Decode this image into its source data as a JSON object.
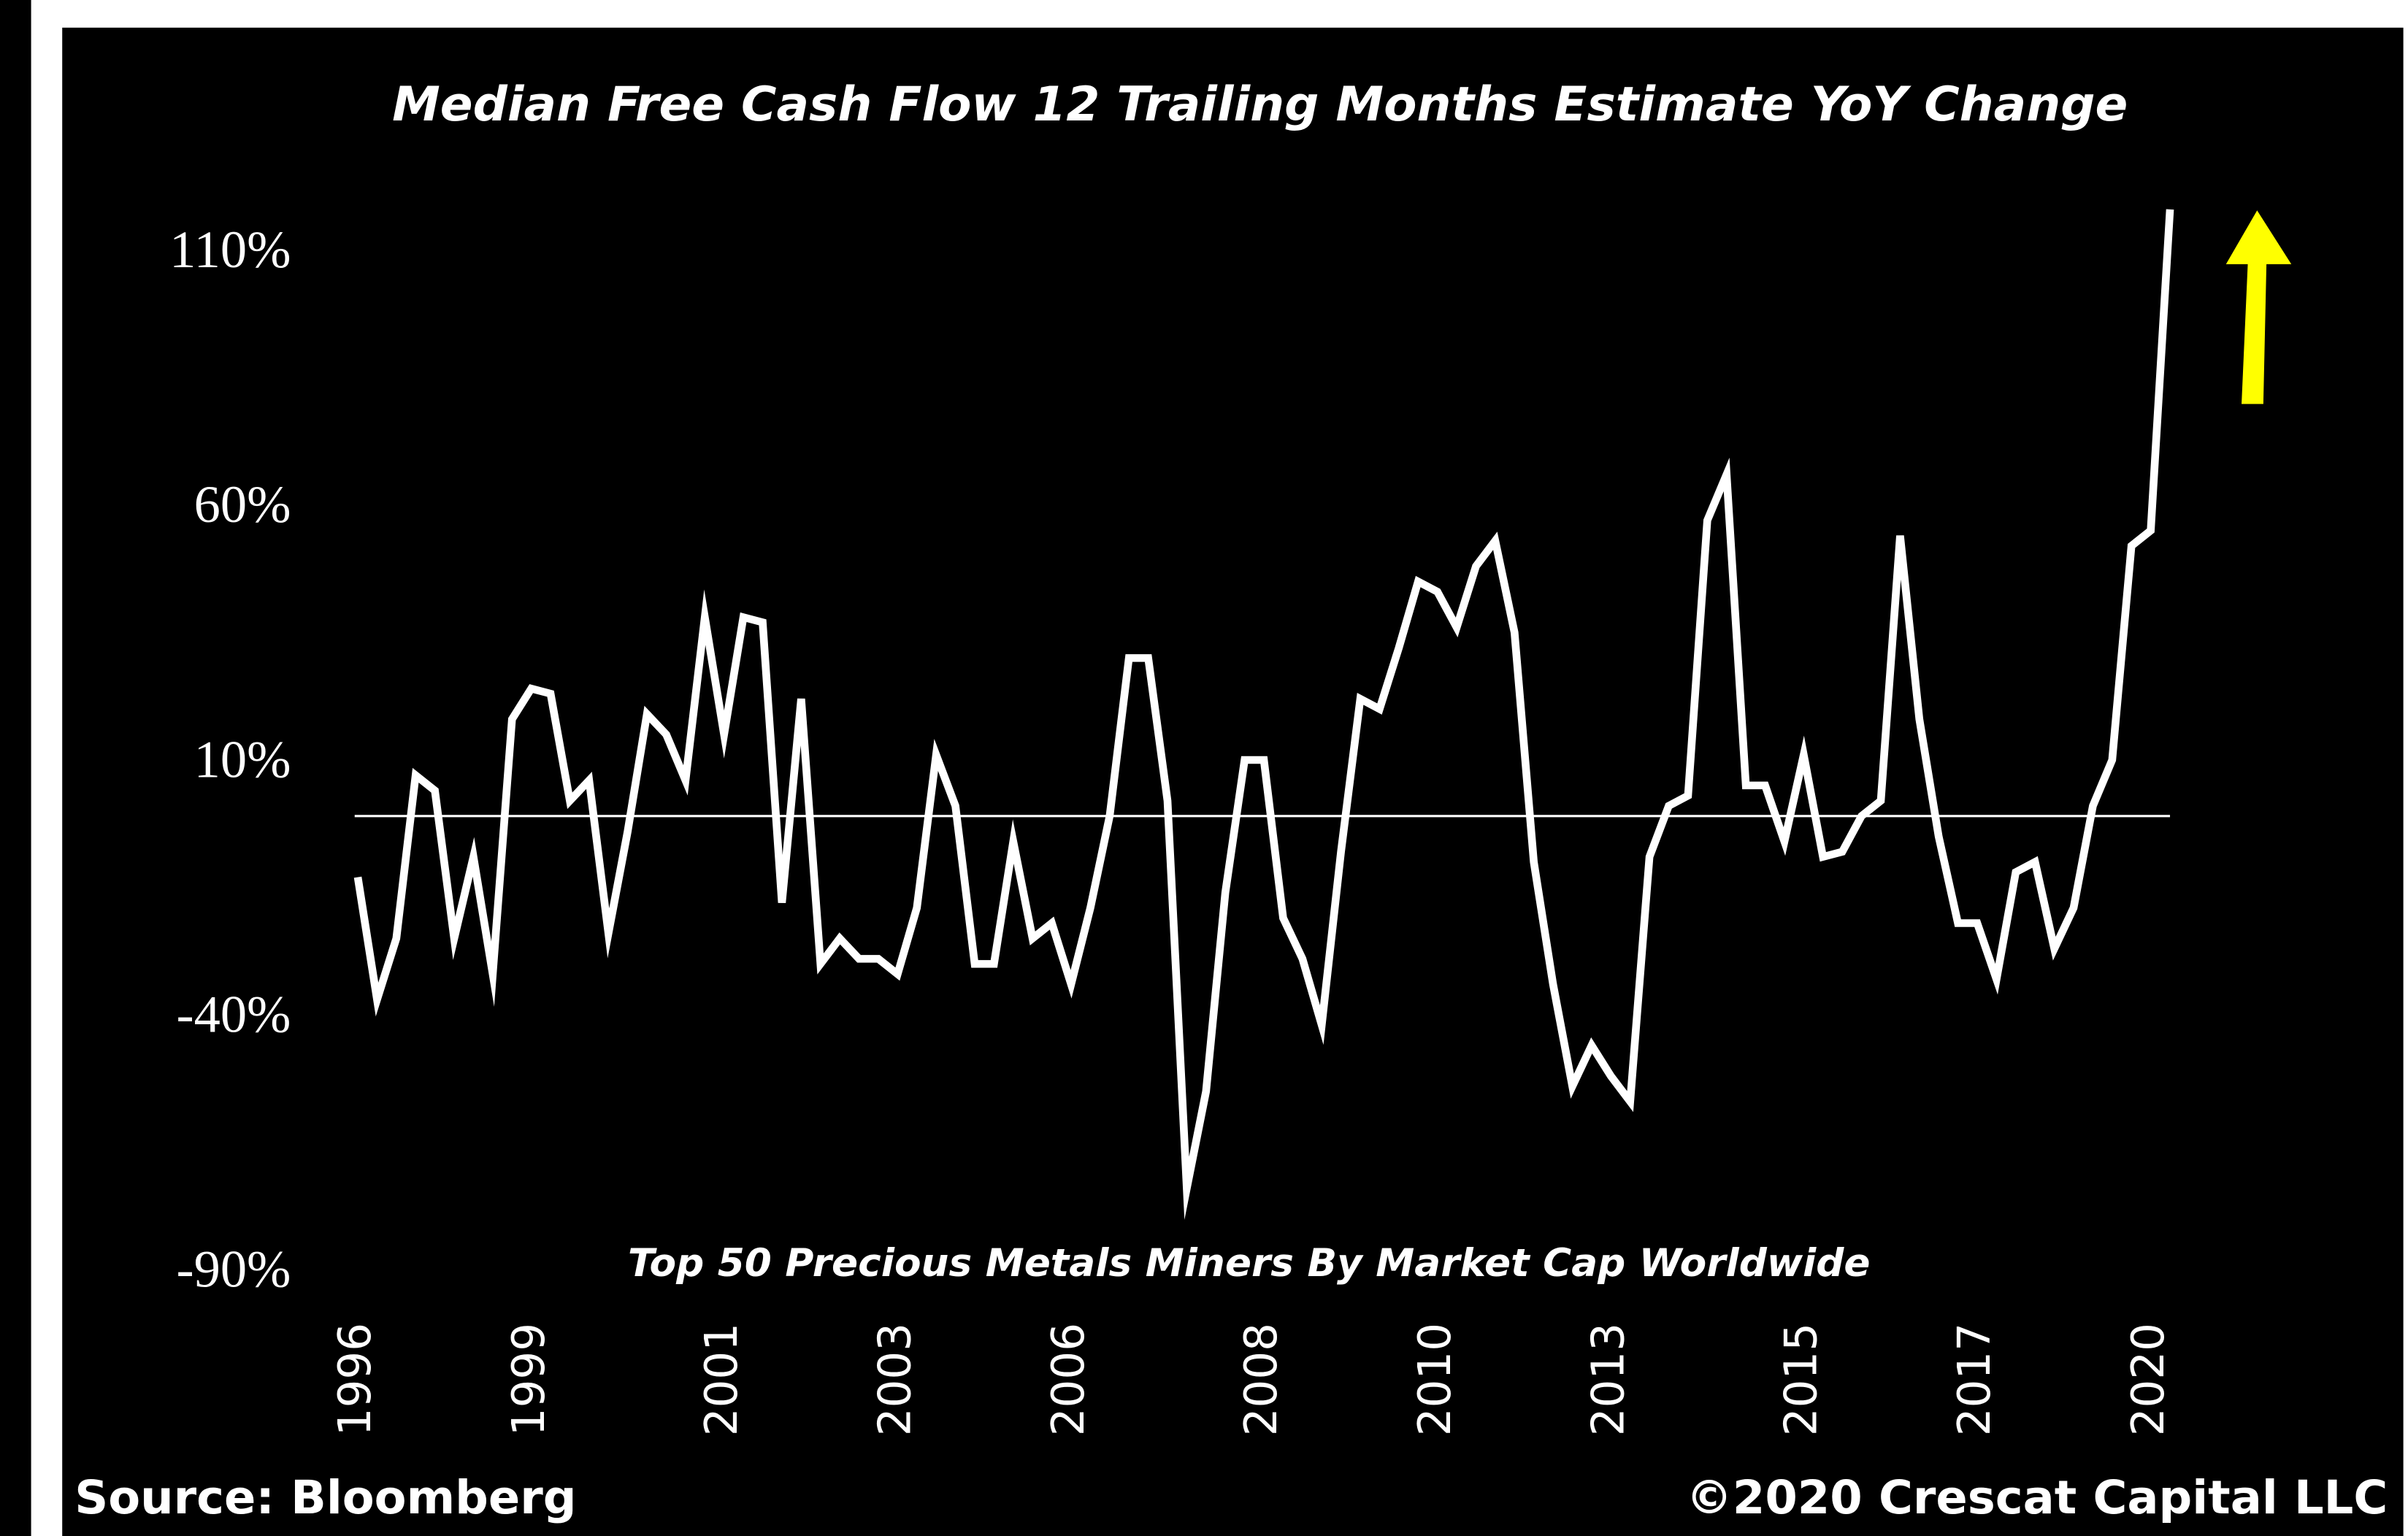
{
  "chart_data": {
    "type": "line",
    "title": "Median Free Cash Flow 12 Trailing Months Estimate YoY Change",
    "subtitle": "Top 50 Precious Metals Miners By Market Cap Worldwide",
    "source": "Source: Bloomberg",
    "copyright": "©2020 Crescat Capital LLC",
    "categories": [
      "1996",
      null,
      null,
      null,
      null,
      null,
      null,
      null,
      null,
      "1999",
      null,
      null,
      null,
      null,
      null,
      null,
      null,
      null,
      null,
      "2001",
      null,
      null,
      null,
      null,
      null,
      null,
      null,
      null,
      "2003",
      null,
      null,
      null,
      null,
      null,
      null,
      null,
      null,
      "2006",
      null,
      null,
      null,
      null,
      null,
      null,
      null,
      null,
      null,
      "2008",
      null,
      null,
      null,
      null,
      null,
      null,
      null,
      null,
      "2010",
      null,
      null,
      null,
      null,
      null,
      null,
      null,
      null,
      "2013",
      null,
      null,
      null,
      null,
      null,
      null,
      null,
      null,
      null,
      "2015",
      null,
      null,
      null,
      null,
      null,
      null,
      null,
      null,
      "2017",
      null,
      null,
      null,
      null,
      null,
      null,
      null,
      null,
      "2020",
      null
    ],
    "series": [
      {
        "color": "#ffffff",
        "values": [
          -12,
          -36,
          -24,
          8,
          5,
          -24,
          -8,
          -31,
          19,
          25,
          24,
          3,
          7,
          -23,
          -3,
          20,
          16,
          7,
          39,
          16,
          39,
          38,
          -17,
          23,
          -29,
          -24,
          -28,
          -28,
          -31,
          -18,
          12,
          2,
          -29,
          -29,
          -5,
          -24,
          -21,
          -33,
          -18,
          0,
          31,
          31,
          3,
          -73,
          -54,
          -15,
          11,
          11,
          -20,
          -28,
          -41,
          -7,
          23,
          21,
          33,
          46,
          44,
          37,
          49,
          54,
          36,
          -9,
          -33,
          -53,
          -45,
          -51,
          -56,
          -8,
          2,
          4,
          58,
          67,
          6,
          6,
          -5,
          12,
          -8,
          -7,
          0,
          3,
          55,
          19,
          -4,
          -21,
          -21,
          -32,
          -11,
          -9,
          -26,
          -18,
          2,
          11,
          53,
          56,
          119
        ]
      }
    ],
    "ylim": [
      -90,
      120
    ],
    "yticks": [
      {
        "value": 110,
        "label": "110%"
      },
      {
        "value": 60,
        "label": "60%"
      },
      {
        "value": 10,
        "label": "10%"
      },
      {
        "value": -40,
        "label": "-40%"
      },
      {
        "value": -90,
        "label": "-90%"
      }
    ],
    "reference_line": 0,
    "background": "#000000",
    "arrow_color": "#ffff00"
  }
}
